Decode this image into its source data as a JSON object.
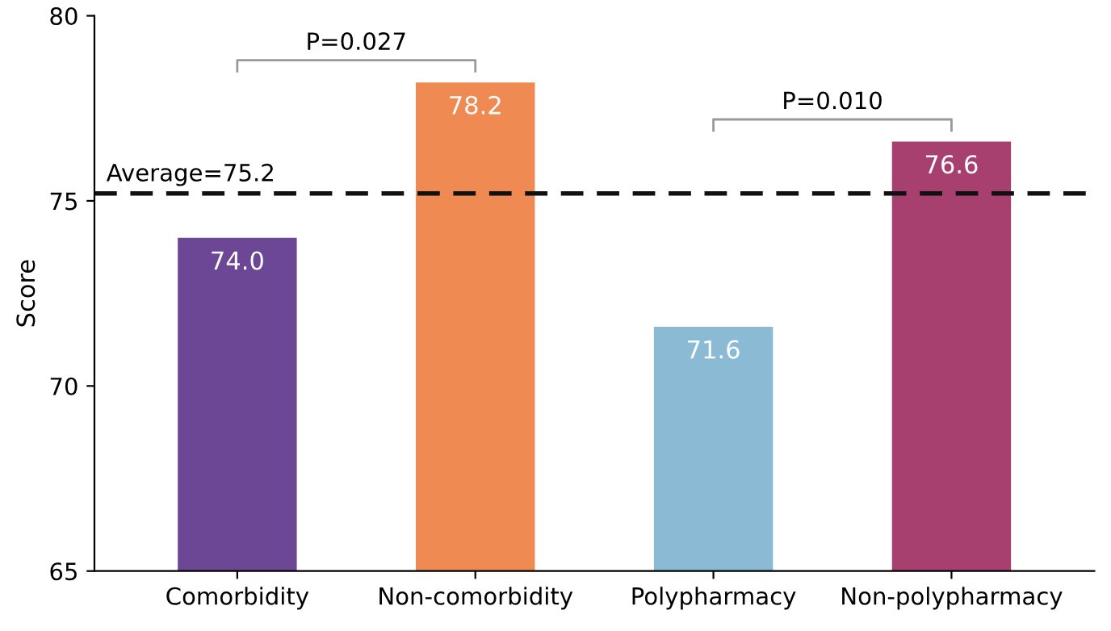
{
  "chart_data": {
    "type": "bar",
    "ylabel": "Score",
    "categories": [
      "Comorbidity",
      "Non-comorbidity",
      "Polypharmacy",
      "Non-polypharmacy"
    ],
    "values": [
      74.0,
      78.2,
      71.6,
      76.6
    ],
    "colors": [
      "#6c4796",
      "#ef8a52",
      "#8bbad5",
      "#a8406f"
    ],
    "value_labels": [
      "74.0",
      "78.2",
      "71.6",
      "76.6"
    ],
    "ylim": [
      65,
      80
    ],
    "yticks": [
      65,
      70,
      75,
      80
    ],
    "ref_lines": [
      {
        "axis": "y",
        "value": 75.2,
        "label": "Average=75.2",
        "color": "#111111",
        "line_style": "dashed"
      }
    ],
    "annotations": [
      "P=0.027",
      "P=0.010"
    ],
    "grid": false
  }
}
